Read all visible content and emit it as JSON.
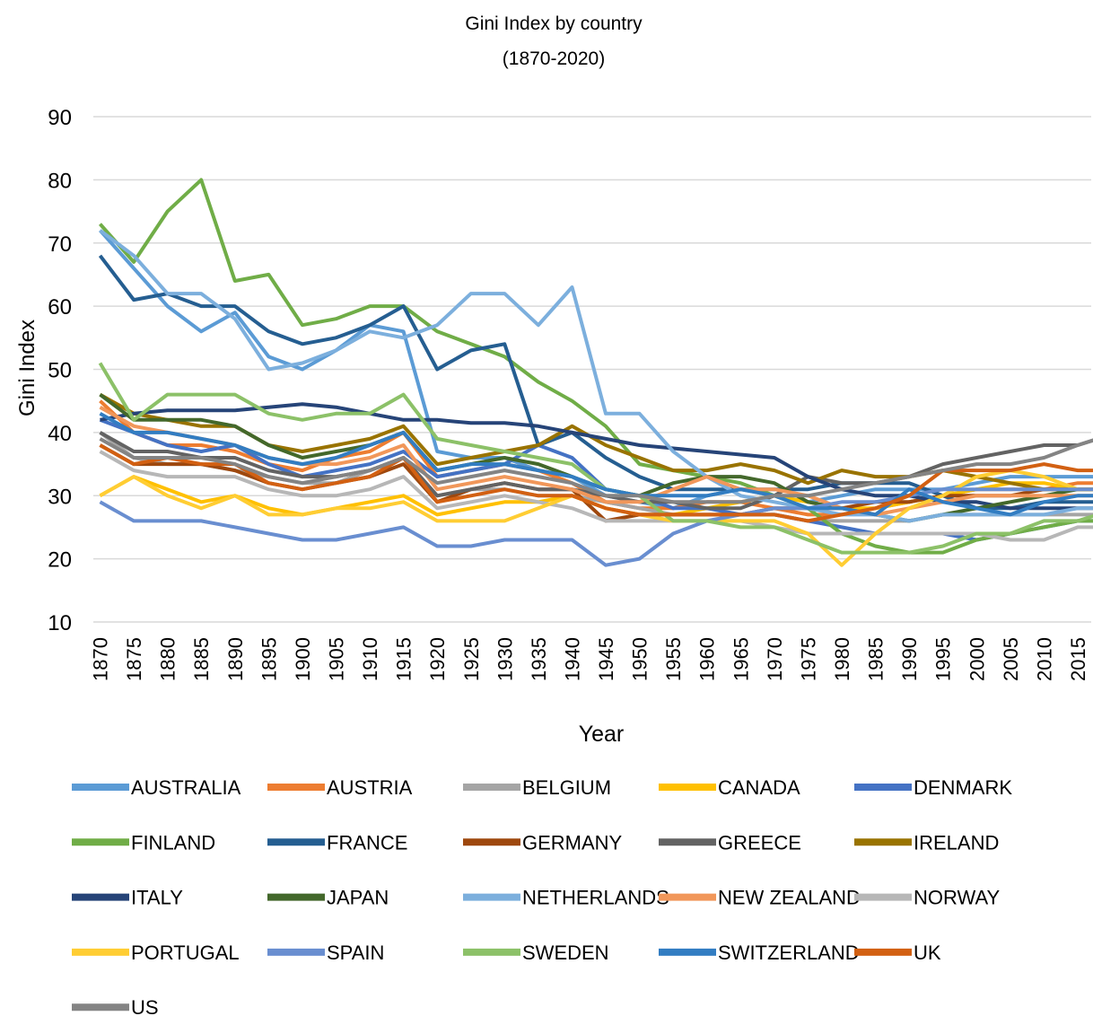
{
  "chart_data": {
    "type": "line",
    "title": "Gini Index by country",
    "subtitle": "(1870-2020)",
    "x_label": "Year",
    "y_label": "Gini Index",
    "x": [
      1870,
      1875,
      1880,
      1885,
      1890,
      1895,
      1900,
      1905,
      1910,
      1915,
      1920,
      1925,
      1930,
      1935,
      1940,
      1945,
      1950,
      1955,
      1960,
      1965,
      1970,
      1975,
      1980,
      1985,
      1990,
      1995,
      2000,
      2005,
      2010,
      2015,
      2018
    ],
    "xlim": [
      1869,
      2017
    ],
    "xticks": [
      1870,
      1875,
      1880,
      1885,
      1890,
      1895,
      1900,
      1905,
      1910,
      1915,
      1920,
      1925,
      1930,
      1935,
      1940,
      1945,
      1950,
      1955,
      1960,
      1965,
      1970,
      1975,
      1980,
      1985,
      1990,
      1995,
      2000,
      2005,
      2010,
      2015
    ],
    "ylim": [
      10,
      90
    ],
    "yticks": [
      10,
      20,
      30,
      40,
      50,
      60,
      70,
      80,
      90
    ],
    "grid": true,
    "legend": "bottom",
    "series": [
      {
        "name": "AUSTRALIA",
        "color": "#5b9bd5",
        "values": [
          72,
          66,
          60,
          56,
          59,
          52,
          50,
          53,
          57,
          56,
          37,
          36,
          36,
          34,
          33,
          30,
          29,
          28,
          30,
          31,
          30,
          29,
          30,
          31,
          31,
          31,
          32,
          33,
          33,
          33,
          33
        ]
      },
      {
        "name": "AUSTRIA",
        "color": "#ed7d31",
        "values": [
          45,
          40,
          38,
          38,
          37,
          35,
          34,
          36,
          37,
          40,
          33,
          34,
          35,
          34,
          32,
          29,
          28,
          28,
          29,
          29,
          28,
          27,
          27,
          28,
          29,
          30,
          31,
          31,
          31,
          32,
          32
        ]
      },
      {
        "name": "BELGIUM",
        "color": "#a5a5a5",
        "values": [
          40,
          36,
          35,
          35,
          34,
          33,
          32,
          32,
          34,
          36,
          30,
          31,
          31,
          30,
          30,
          29,
          28,
          27,
          27,
          27,
          27,
          26,
          26,
          26,
          26,
          27,
          27,
          27,
          27,
          27,
          27
        ]
      },
      {
        "name": "CANADA",
        "color": "#ffc000",
        "values": [
          30,
          33,
          31,
          29,
          30,
          28,
          27,
          28,
          29,
          30,
          27,
          28,
          29,
          29,
          30,
          28,
          27,
          27,
          28,
          29,
          30,
          29,
          28,
          28,
          29,
          30,
          31,
          32,
          32,
          31,
          31
        ]
      },
      {
        "name": "DENMARK",
        "color": "#4472c4",
        "values": [
          42,
          40,
          38,
          37,
          38,
          35,
          33,
          34,
          35,
          37,
          33,
          34,
          35,
          38,
          36,
          31,
          30,
          28,
          28,
          27,
          27,
          26,
          25,
          24,
          24,
          24,
          23,
          24,
          25,
          26,
          26
        ]
      },
      {
        "name": "FINLAND",
        "color": "#70ad47",
        "values": [
          73,
          67,
          75,
          80,
          64,
          65,
          57,
          58,
          60,
          60,
          56,
          54,
          52,
          48,
          45,
          41,
          35,
          34,
          33,
          32,
          30,
          28,
          24,
          22,
          21,
          21,
          23,
          24,
          25,
          26,
          26
        ]
      },
      {
        "name": "FRANCE",
        "color": "#255e91",
        "values": [
          68,
          61,
          62,
          60,
          60,
          56,
          54,
          55,
          57,
          60,
          50,
          53,
          54,
          38,
          40,
          36,
          33,
          31,
          31,
          31,
          31,
          31,
          32,
          32,
          32,
          30,
          28,
          28,
          29,
          29,
          29
        ]
      },
      {
        "name": "GERMANY",
        "color": "#9e480e",
        "values": [
          38,
          35,
          35,
          35,
          34,
          32,
          31,
          32,
          33,
          35,
          29,
          31,
          32,
          31,
          31,
          26,
          27,
          27,
          27,
          27,
          28,
          28,
          28,
          29,
          29,
          30,
          30,
          30,
          31,
          31,
          31
        ]
      },
      {
        "name": "GREECE",
        "color": "#636363",
        "values": [
          40,
          37,
          37,
          36,
          36,
          34,
          33,
          33,
          34,
          36,
          30,
          31,
          32,
          31,
          31,
          30,
          29,
          29,
          28,
          28,
          30,
          33,
          32,
          32,
          33,
          35,
          36,
          37,
          38,
          38,
          39
        ]
      },
      {
        "name": "IRELAND",
        "color": "#997300",
        "values": [
          46,
          43,
          42,
          41,
          41,
          38,
          37,
          38,
          39,
          41,
          35,
          36,
          37,
          38,
          41,
          38,
          36,
          34,
          34,
          35,
          34,
          32,
          34,
          33,
          33,
          34,
          33,
          32,
          31,
          31,
          31
        ]
      },
      {
        "name": "ITALY",
        "color": "#264478",
        "values": [
          42,
          43,
          43.5,
          43.5,
          43.5,
          44,
          44.5,
          44,
          43,
          42,
          42,
          41.5,
          41.5,
          41,
          40,
          39,
          38,
          37.5,
          37,
          36.5,
          36,
          33,
          31,
          30,
          30,
          29,
          29,
          28,
          28,
          28,
          28
        ]
      },
      {
        "name": "JAPAN",
        "color": "#43682b",
        "values": [
          46,
          42,
          42,
          42,
          41,
          38,
          36,
          37,
          38,
          40,
          34,
          35,
          36,
          35,
          33,
          31,
          30,
          32,
          33,
          33,
          32,
          29,
          28,
          27,
          26,
          27,
          28,
          29,
          30,
          31,
          31
        ]
      },
      {
        "name": "NETHERLANDS",
        "color": "#7cafdd",
        "values": [
          72,
          68,
          62,
          62,
          58,
          50,
          51,
          53,
          56,
          55,
          57,
          62,
          62,
          57,
          63,
          43,
          43,
          37,
          33,
          30,
          29,
          28,
          27,
          27,
          26,
          27,
          27,
          27,
          27,
          28,
          28
        ]
      },
      {
        "name": "NEW ZEALAND",
        "color": "#f1975a",
        "values": [
          44,
          41,
          40,
          39,
          38,
          36,
          35,
          35,
          36,
          38,
          31,
          32,
          33,
          32,
          31,
          29,
          29,
          31,
          33,
          31,
          31,
          30,
          28,
          27,
          28,
          29,
          30,
          30,
          30,
          30,
          30
        ]
      },
      {
        "name": "NORWAY",
        "color": "#b7b7b7",
        "values": [
          37,
          34,
          33,
          33,
          33,
          31,
          30,
          30,
          31,
          33,
          28,
          29,
          30,
          29,
          28,
          26,
          26,
          26,
          26,
          26,
          25,
          24,
          24,
          24,
          24,
          24,
          24,
          23,
          23,
          25,
          25
        ]
      },
      {
        "name": "PORTUGAL",
        "color": "#ffcd33",
        "values": [
          30,
          33,
          30,
          28,
          30,
          27,
          27,
          28,
          28,
          29,
          26,
          26,
          26,
          28,
          30,
          28,
          27,
          26,
          26,
          26,
          26,
          24,
          19,
          24,
          28,
          30,
          33,
          34,
          33,
          31,
          31
        ]
      },
      {
        "name": "SPAIN",
        "color": "#698ed0",
        "values": [
          29,
          26,
          26,
          26,
          25,
          24,
          23,
          23,
          24,
          25,
          22,
          22,
          23,
          23,
          23,
          19,
          20,
          24,
          26,
          27,
          28,
          28,
          29,
          29,
          30,
          31,
          31,
          31,
          31,
          31,
          31
        ]
      },
      {
        "name": "SWEDEN",
        "color": "#8cc168",
        "values": [
          51,
          42,
          46,
          46,
          46,
          43,
          42,
          43,
          43,
          46,
          39,
          38,
          37,
          36,
          35,
          31,
          30,
          26,
          26,
          25,
          25,
          23,
          21,
          21,
          21,
          22,
          24,
          24,
          26,
          26,
          27
        ]
      },
      {
        "name": "SWITZERLAND",
        "color": "#327dc2",
        "values": [
          43,
          40,
          40,
          39,
          38,
          36,
          35,
          36,
          38,
          40,
          34,
          35,
          35,
          34,
          33,
          31,
          30,
          30,
          30,
          31,
          30,
          28,
          28,
          27,
          31,
          29,
          28,
          27,
          29,
          30,
          30
        ]
      },
      {
        "name": "UK",
        "color": "#d26012",
        "values": [
          38,
          35,
          36,
          35,
          35,
          32,
          31,
          32,
          33,
          36,
          29,
          30,
          31,
          30,
          30,
          28,
          27,
          27,
          27,
          27,
          27,
          26,
          27,
          28,
          30,
          34,
          34,
          34,
          35,
          34,
          34
        ]
      },
      {
        "name": "US",
        "color": "#848484",
        "values": [
          39,
          36,
          36,
          36,
          35,
          33,
          32,
          33,
          34,
          36,
          32,
          33,
          34,
          33,
          32,
          30,
          30,
          29,
          29,
          29,
          30,
          30,
          31,
          32,
          33,
          34,
          35,
          35,
          36,
          38,
          39
        ]
      }
    ]
  }
}
